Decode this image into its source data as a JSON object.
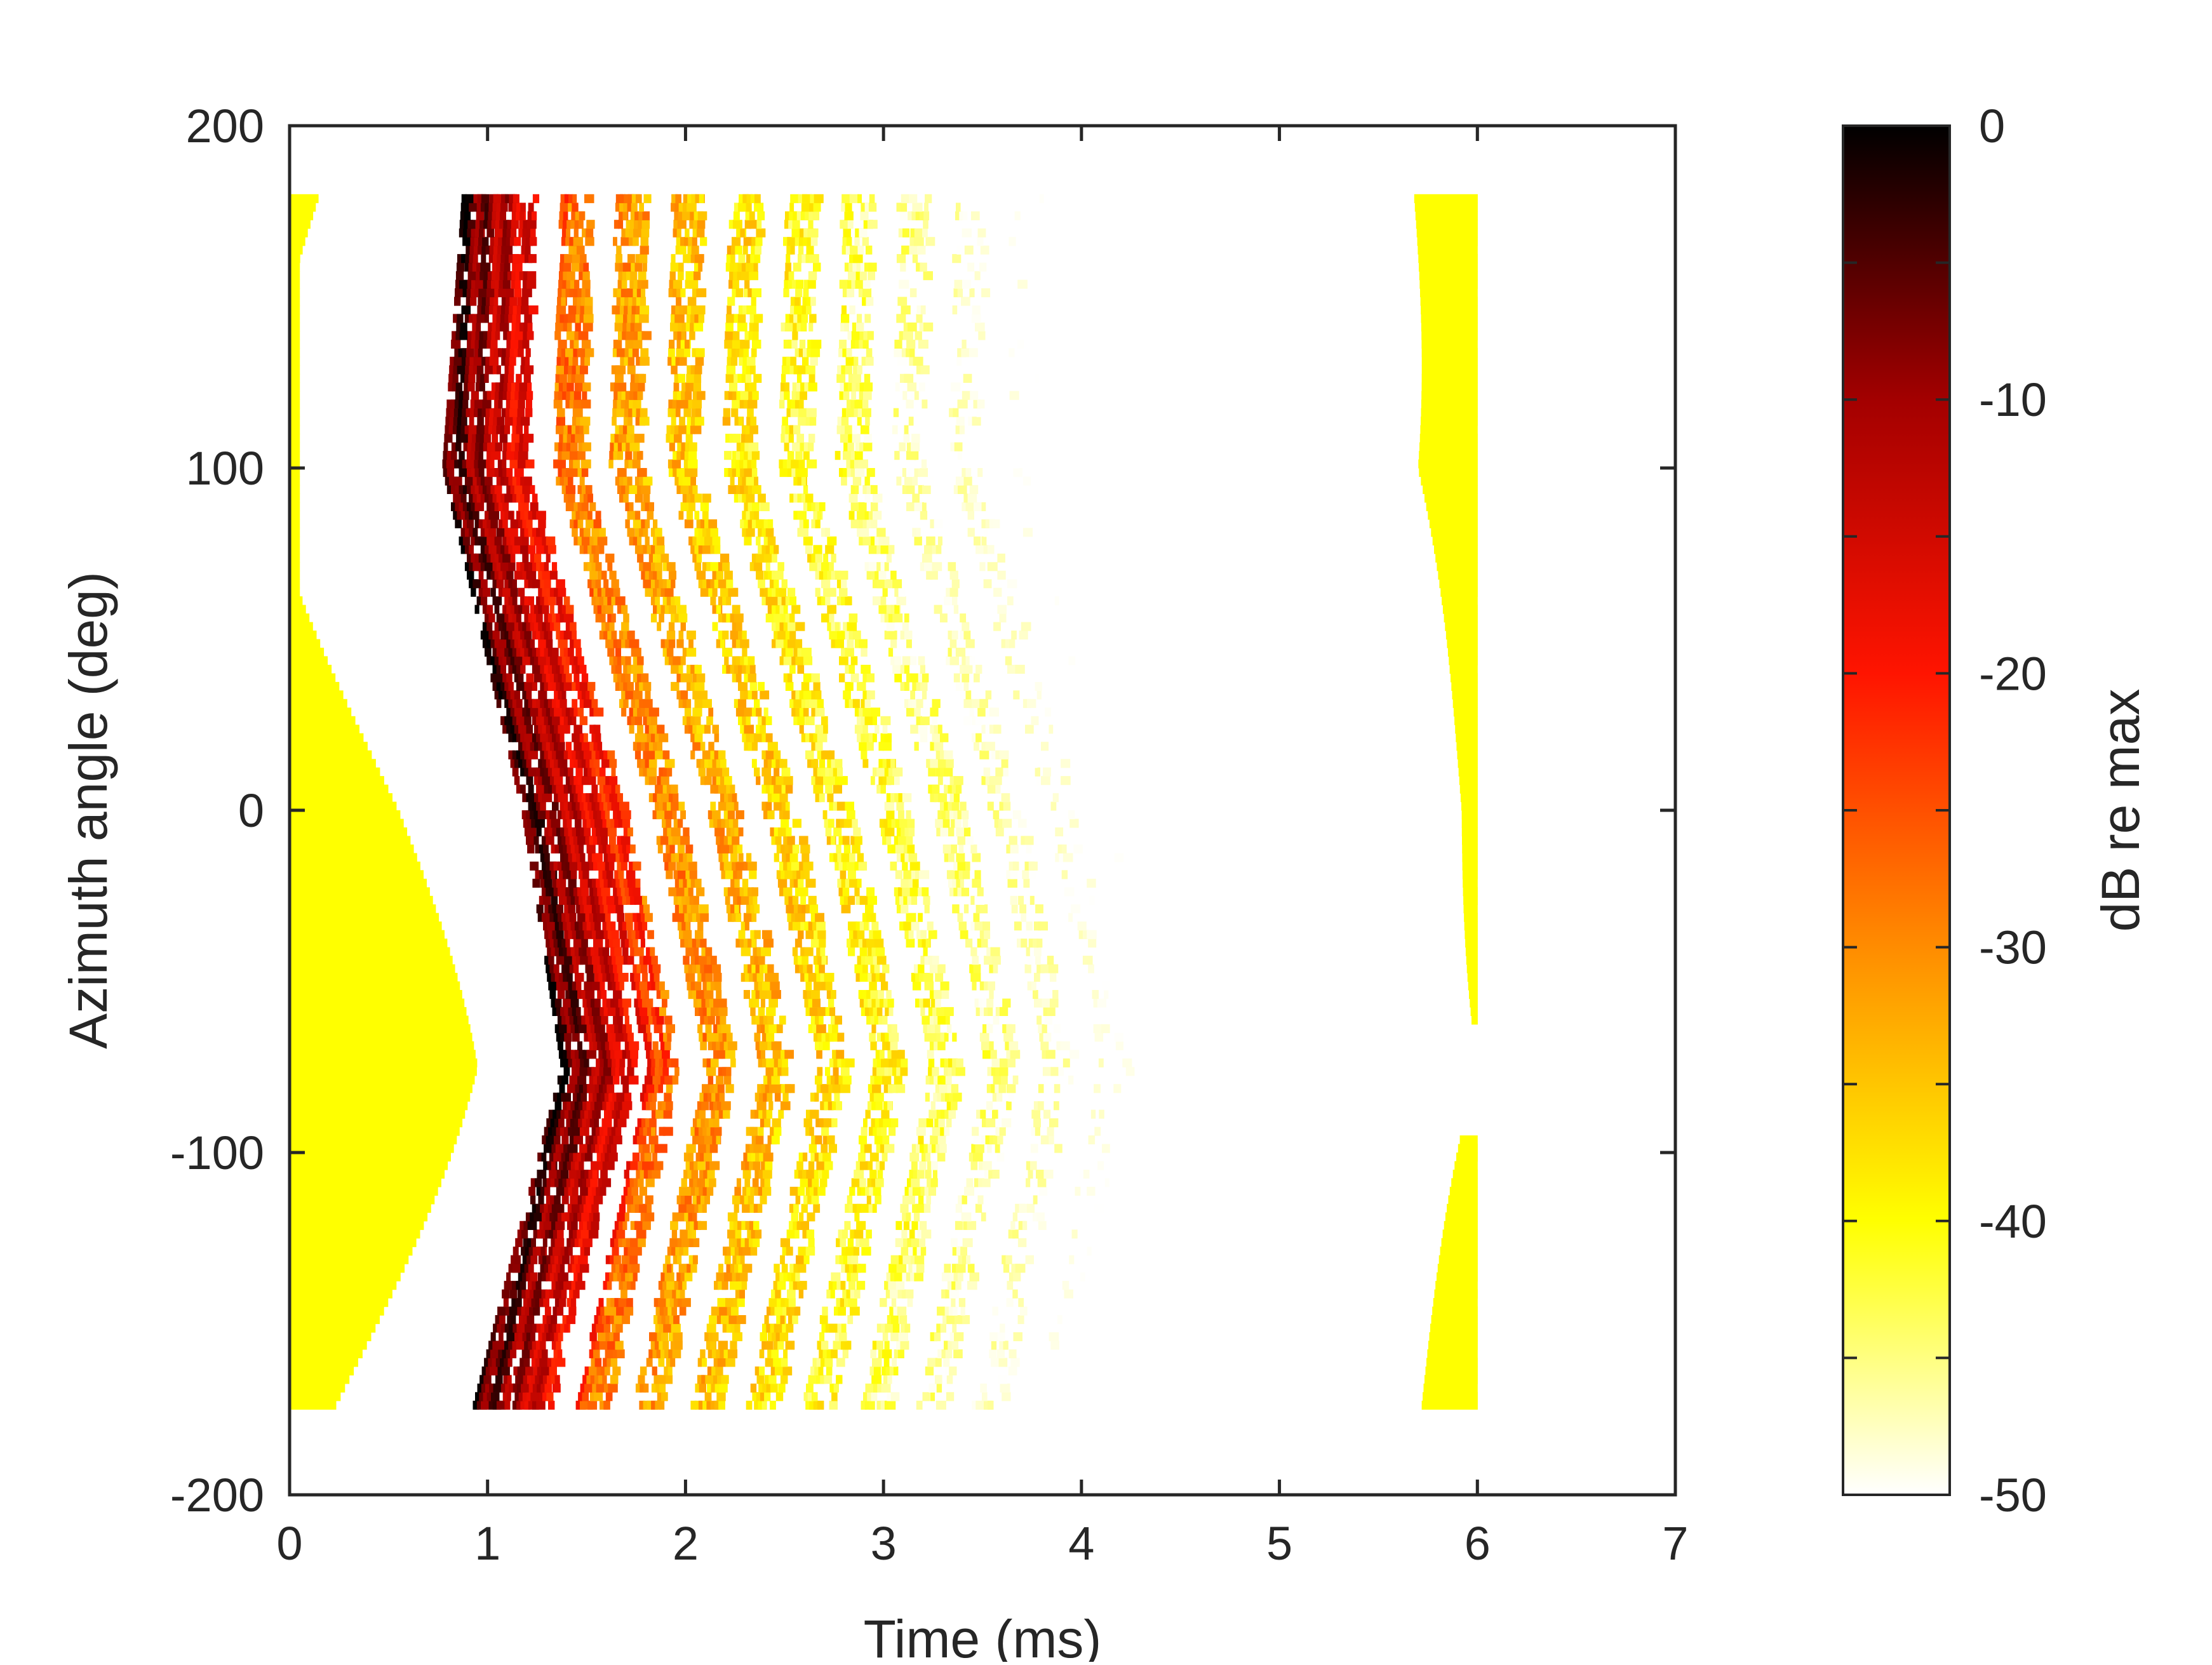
{
  "chart_data": {
    "type": "heatmap",
    "title": "",
    "xlabel": "Time (ms)",
    "ylabel": "Azimuth angle (deg)",
    "xlim": [
      0,
      7
    ],
    "ylim": [
      -200,
      200
    ],
    "x_ticks": [
      0,
      1,
      2,
      3,
      4,
      5,
      6,
      7
    ],
    "y_ticks": [
      -200,
      -100,
      0,
      100,
      200
    ],
    "x_tick_labels": [
      "0",
      "1",
      "2",
      "3",
      "4",
      "5",
      "6",
      "7"
    ],
    "y_tick_labels": [
      "-200",
      "-100",
      "0",
      "100",
      "200"
    ],
    "data_azimuth_range": [
      -175,
      180
    ],
    "colormap": "hot (reversed)",
    "colorbar": {
      "label": "dB re max",
      "range": [
        -50,
        0
      ],
      "ticks": [
        0,
        -10,
        -20,
        -30,
        -40,
        -50
      ],
      "tick_labels": [
        "0",
        "-10",
        "-20",
        "-30",
        "-40",
        "-50"
      ],
      "stops": [
        {
          "value": 0,
          "color": "#000000"
        },
        {
          "value": -10,
          "color": "#a30000"
        },
        {
          "value": -20,
          "color": "#ff1400"
        },
        {
          "value": -30,
          "color": "#ff8c00"
        },
        {
          "value": -40,
          "color": "#ffff00"
        },
        {
          "value": -45,
          "color": "#ffff80"
        },
        {
          "value": -50,
          "color": "#ffffff"
        }
      ]
    },
    "features": [
      {
        "name": "direct sound",
        "arrival_ms_at_azimuth": [
          [
            180,
            0.95
          ],
          [
            100,
            0.85
          ],
          [
            0,
            1.25
          ],
          [
            -75,
            1.45
          ],
          [
            -175,
            1.0
          ]
        ],
        "peak_dB": 0
      },
      {
        "name": "early reflections",
        "time_range_ms": [
          1.0,
          2.3
        ],
        "level_dB": [
          -30,
          -5
        ]
      },
      {
        "name": "late reflections",
        "time_range_ms": [
          2.0,
          4.3
        ],
        "level_dB": [
          -50,
          -30
        ]
      },
      {
        "name": "pre-response floor region",
        "time_range_ms": [
          0,
          0.7
        ],
        "level_dB": -40
      },
      {
        "name": "wrap-around floor region",
        "time_range_ms": [
          5.5,
          6.0
        ],
        "level_dB": -40
      }
    ],
    "grid": false,
    "legend": "none"
  }
}
